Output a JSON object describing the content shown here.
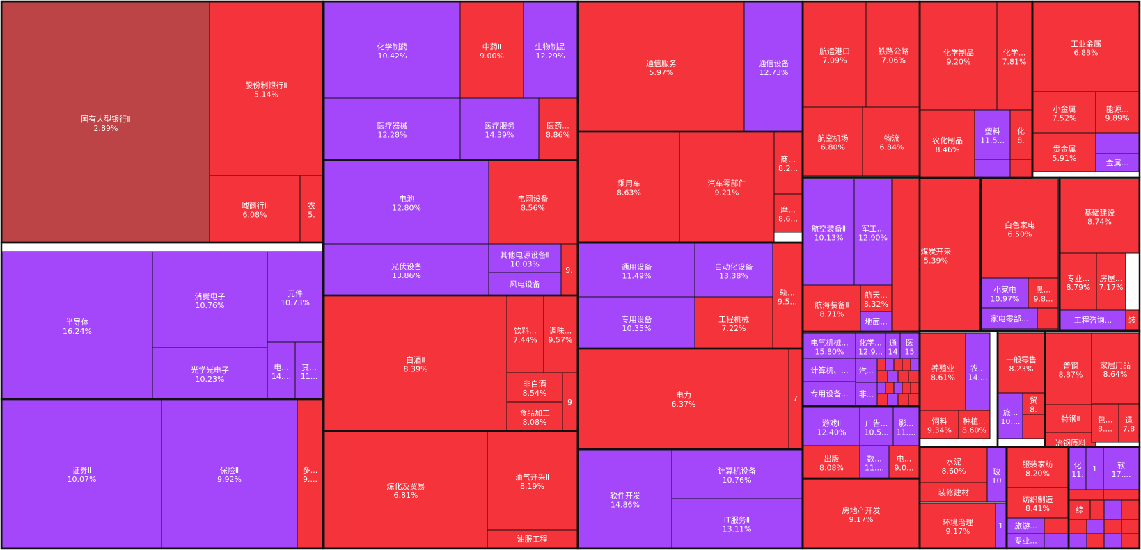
{
  "colors": {
    "red": "#f5333b",
    "purple": "#a446fa",
    "darkred": "#bc4446",
    "border": "#111111"
  },
  "chart_data": {
    "type": "treemap",
    "cells": [
      {
        "name": "国有大型银行Ⅱ",
        "value": "2.89%",
        "color": "darkred"
      },
      {
        "name": "股份制银行Ⅱ",
        "value": "5.14%",
        "color": "red"
      },
      {
        "name": "城商行Ⅱ",
        "value": "6.08%",
        "color": "red"
      },
      {
        "name": "农",
        "value": "5.",
        "color": "red"
      },
      {
        "name": "半导体",
        "value": "16.24%",
        "color": "purple"
      },
      {
        "name": "消费电子",
        "value": "10.76%",
        "color": "purple"
      },
      {
        "name": "元件",
        "value": "10.73%",
        "color": "purple"
      },
      {
        "name": "光学光电子",
        "value": "10.23%",
        "color": "purple"
      },
      {
        "name": "电...",
        "value": "14....",
        "color": "purple"
      },
      {
        "name": "其...",
        "value": "11...",
        "color": "purple"
      },
      {
        "name": "证券Ⅱ",
        "value": "10.07%",
        "color": "purple"
      },
      {
        "name": "保险Ⅱ",
        "value": "9.92%",
        "color": "purple"
      },
      {
        "name": "多...",
        "value": "9....",
        "color": "red"
      },
      {
        "name": "化学制药",
        "value": "10.42%",
        "color": "purple"
      },
      {
        "name": "中药Ⅱ",
        "value": "9.00%",
        "color": "red"
      },
      {
        "name": "生物制品",
        "value": "12.29%",
        "color": "purple"
      },
      {
        "name": "医疗器械",
        "value": "12.28%",
        "color": "purple"
      },
      {
        "name": "医疗服务",
        "value": "14.39%",
        "color": "purple"
      },
      {
        "name": "医药...",
        "value": "8.86%",
        "color": "red"
      },
      {
        "name": "电池",
        "value": "12.80%",
        "color": "purple"
      },
      {
        "name": "电网设备",
        "value": "8.56%",
        "color": "red"
      },
      {
        "name": "光伏设备",
        "value": "13.86%",
        "color": "purple"
      },
      {
        "name": "其他电源设备Ⅱ",
        "value": "10.03%",
        "color": "purple"
      },
      {
        "name": "风电设备",
        "value": "",
        "color": "purple"
      },
      {
        "name": "9.",
        "value": "",
        "color": "red"
      },
      {
        "name": "白酒Ⅱ",
        "value": "8.39%",
        "color": "red"
      },
      {
        "name": "饮料...",
        "value": "7.44%",
        "color": "red"
      },
      {
        "name": "调味...",
        "value": "9.57%",
        "color": "red"
      },
      {
        "name": "非白酒",
        "value": "8.54%",
        "color": "red"
      },
      {
        "name": "食品加工",
        "value": "8.08%",
        "color": "red"
      },
      {
        "name": "9",
        "value": "",
        "color": "red"
      },
      {
        "name": "炼化及贸易",
        "value": "6.81%",
        "color": "red"
      },
      {
        "name": "油气开采Ⅱ",
        "value": "8.19%",
        "color": "red"
      },
      {
        "name": "油服工程",
        "value": "",
        "color": "red"
      },
      {
        "name": "通信服务",
        "value": "5.97%",
        "color": "red"
      },
      {
        "name": "通信设备",
        "value": "12.73%",
        "color": "purple"
      },
      {
        "name": "乘用车",
        "value": "8.63%",
        "color": "red"
      },
      {
        "name": "汽车零部件",
        "value": "9.21%",
        "color": "red"
      },
      {
        "name": "商...",
        "value": "8.2...",
        "color": "red"
      },
      {
        "name": "摩...",
        "value": "8.6...",
        "color": "red"
      },
      {
        "name": "通用设备",
        "value": "11.49%",
        "color": "purple"
      },
      {
        "name": "自动化设备",
        "value": "13.38%",
        "color": "purple"
      },
      {
        "name": "专用设备",
        "value": "10.35%",
        "color": "purple"
      },
      {
        "name": "工程机械",
        "value": "7.22%",
        "color": "red"
      },
      {
        "name": "轨...",
        "value": "9.5...",
        "color": "red"
      },
      {
        "name": "电力",
        "value": "6.37%",
        "color": "red"
      },
      {
        "name": "7",
        "value": "",
        "color": "red"
      },
      {
        "name": "软件开发",
        "value": "14.86%",
        "color": "purple"
      },
      {
        "name": "计算机设备",
        "value": "10.76%",
        "color": "purple"
      },
      {
        "name": "IT服务Ⅱ",
        "value": "13.11%",
        "color": "purple"
      },
      {
        "name": "航运港口",
        "value": "7.09%",
        "color": "red"
      },
      {
        "name": "铁路公路",
        "value": "7.06%",
        "color": "red"
      },
      {
        "name": "航空机场",
        "value": "6.80%",
        "color": "red"
      },
      {
        "name": "物流",
        "value": "6.84%",
        "color": "red"
      },
      {
        "name": "航空装备Ⅱ",
        "value": "10.13%",
        "color": "purple"
      },
      {
        "name": "军工...",
        "value": "12.90%",
        "color": "purple"
      },
      {
        "name": "航海装备Ⅱ",
        "value": "8.71%",
        "color": "red"
      },
      {
        "name": "航天...",
        "value": "8.32%",
        "color": "red"
      },
      {
        "name": "地面...",
        "value": "",
        "color": "purple"
      },
      {
        "name": "电气机械...",
        "value": "15.80%",
        "color": "purple"
      },
      {
        "name": "化学...",
        "value": "12.9...",
        "color": "purple"
      },
      {
        "name": "通",
        "value": "14",
        "color": "purple"
      },
      {
        "name": "医",
        "value": "15",
        "color": "purple"
      },
      {
        "name": "计算机、...",
        "value": "",
        "color": "purple"
      },
      {
        "name": "汽...",
        "value": "",
        "color": "purple"
      },
      {
        "name": "专用设备...",
        "value": "",
        "color": "purple"
      },
      {
        "name": "非...",
        "value": "",
        "color": "purple"
      },
      {
        "name": "游戏Ⅱ",
        "value": "12.40%",
        "color": "purple"
      },
      {
        "name": "广告...",
        "value": "10.5...",
        "color": "purple"
      },
      {
        "name": "影...",
        "value": "11....",
        "color": "purple"
      },
      {
        "name": "出版",
        "value": "8.08%",
        "color": "red"
      },
      {
        "name": "数...",
        "value": "11....",
        "color": "purple"
      },
      {
        "name": "电...",
        "value": "9.0...",
        "color": "red"
      },
      {
        "name": "房地产开发",
        "value": "9.17%",
        "color": "red"
      },
      {
        "name": "煤炭开采",
        "value": "5.39%",
        "color": "red"
      },
      {
        "name": "化学制品",
        "value": "9.20%",
        "color": "red"
      },
      {
        "name": "化学...",
        "value": "7.81%",
        "color": "red"
      },
      {
        "name": "农化制品",
        "value": "8.46%",
        "color": "red"
      },
      {
        "name": "塑料",
        "value": "11.5...",
        "color": "purple"
      },
      {
        "name": "化",
        "value": "8.",
        "color": "red"
      },
      {
        "name": "工业金属",
        "value": "6.88%",
        "color": "red"
      },
      {
        "name": "小金属",
        "value": "7.52%",
        "color": "red"
      },
      {
        "name": "能源...",
        "value": "9.89%",
        "color": "red"
      },
      {
        "name": "贵金属",
        "value": "5.91%",
        "color": "red"
      },
      {
        "name": "金属...",
        "value": "",
        "color": "purple"
      },
      {
        "name": "白色家电",
        "value": "6.50%",
        "color": "red"
      },
      {
        "name": "小家电",
        "value": "10.97%",
        "color": "purple"
      },
      {
        "name": "黑...",
        "value": "9.8...",
        "color": "red"
      },
      {
        "name": "家电零部...",
        "value": "",
        "color": "purple"
      },
      {
        "name": "基础建设",
        "value": "8.74%",
        "color": "red"
      },
      {
        "name": "专业...",
        "value": "8.79%",
        "color": "red"
      },
      {
        "name": "房屋...",
        "value": "7.17%",
        "color": "red"
      },
      {
        "name": "工程咨询...",
        "value": "",
        "color": "purple"
      },
      {
        "name": "装",
        "value": "",
        "color": "red"
      },
      {
        "name": "养殖业",
        "value": "8.61%",
        "color": "red"
      },
      {
        "name": "农...",
        "value": "14....",
        "color": "purple"
      },
      {
        "name": "饲料",
        "value": "9.34%",
        "color": "red"
      },
      {
        "name": "种植...",
        "value": "8.60%",
        "color": "red"
      },
      {
        "name": "一般零售",
        "value": "8.23%",
        "color": "red"
      },
      {
        "name": "旅...",
        "value": "10....",
        "color": "purple"
      },
      {
        "name": "贸",
        "value": "8.",
        "color": "red"
      },
      {
        "name": "普钢",
        "value": "8.87%",
        "color": "red"
      },
      {
        "name": "特钢Ⅱ",
        "value": "",
        "color": "red"
      },
      {
        "name": "冶钢原料",
        "value": "",
        "color": "red"
      },
      {
        "name": "家居用品",
        "value": "8.64%",
        "color": "red"
      },
      {
        "name": "包...",
        "value": "8....",
        "color": "red"
      },
      {
        "name": "造",
        "value": "7.8",
        "color": "red"
      },
      {
        "name": "水泥",
        "value": "8.60%",
        "color": "red"
      },
      {
        "name": "装修建材",
        "value": "",
        "color": "red"
      },
      {
        "name": "玻",
        "value": "10",
        "color": "purple"
      },
      {
        "name": "环境治理",
        "value": "9.17%",
        "color": "red"
      },
      {
        "name": "1",
        "value": "",
        "color": "purple"
      },
      {
        "name": "服装家纺",
        "value": "8.20%",
        "color": "red"
      },
      {
        "name": "纺织制造",
        "value": "8.41%",
        "color": "red"
      },
      {
        "name": "旅游...",
        "value": "",
        "color": "purple"
      },
      {
        "name": "专业...",
        "value": "",
        "color": "purple"
      },
      {
        "name": "化",
        "value": "11.",
        "color": "purple"
      },
      {
        "name": "1",
        "value": "",
        "color": "purple"
      },
      {
        "name": "软",
        "value": "17....",
        "color": "purple"
      },
      {
        "name": "综",
        "value": "",
        "color": "red"
      }
    ]
  }
}
